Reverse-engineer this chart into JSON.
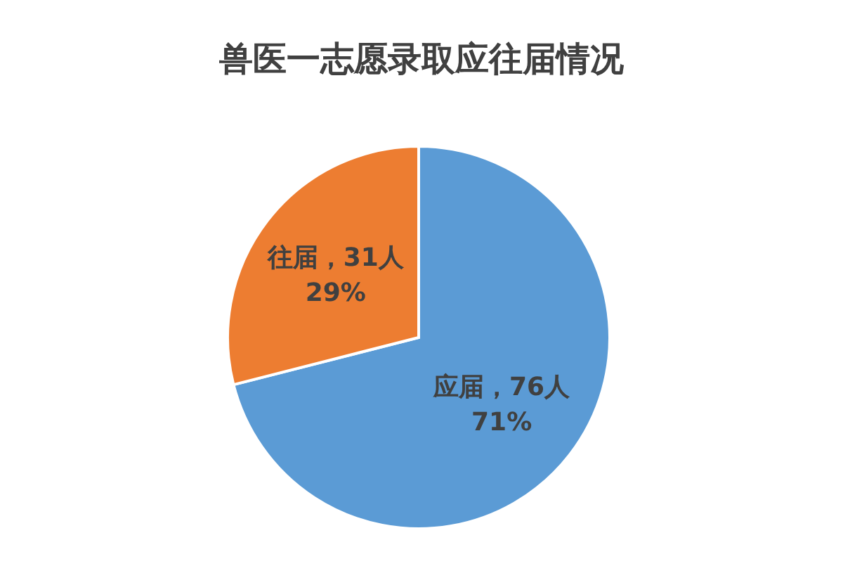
{
  "chart_data": {
    "type": "pie",
    "title": "兽医一志愿录取应往届情况",
    "categories": [
      "应届",
      "往届"
    ],
    "values": [
      76,
      31
    ],
    "colors": [
      "#5b9bd5",
      "#ed7d31"
    ],
    "value_labels": [
      "，76人\n71%",
      "，31人\n29%"
    ],
    "legend": false
  }
}
